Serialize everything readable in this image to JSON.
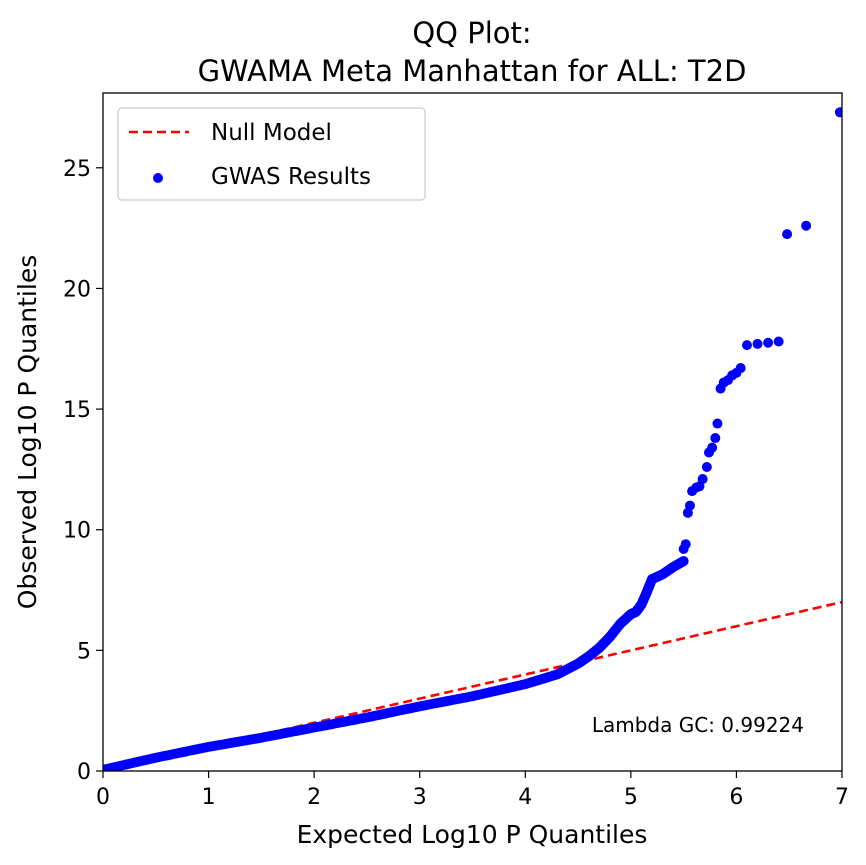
{
  "chart_data": {
    "type": "scatter",
    "title_lines": [
      "QQ Plot:",
      "GWAMA Meta Manhattan for ALL: T2D"
    ],
    "xlabel": "Expected Log10 P Quantiles",
    "ylabel": "Observed Log10 P Quantiles",
    "xlim": [
      0,
      7
    ],
    "ylim": [
      0,
      28.1
    ],
    "xticks": [
      0,
      1,
      2,
      3,
      4,
      5,
      6,
      7
    ],
    "yticks": [
      0,
      5,
      10,
      15,
      20,
      25
    ],
    "grid": false,
    "legend": {
      "placement": "top-left",
      "entries": [
        {
          "label": "Null Model",
          "kind": "dashed-line",
          "color": "#ff0000"
        },
        {
          "label": "GWAS Results",
          "kind": "marker",
          "color": "#0000ff"
        }
      ]
    },
    "annotation": "Lambda GC: 0.99224",
    "series": [
      {
        "name": "Null Model",
        "kind": "line",
        "color": "#ff0000",
        "points": [
          [
            0,
            0
          ],
          [
            7,
            7
          ]
        ]
      },
      {
        "name": "GWAS Results",
        "kind": "scatter",
        "color": "#0000ff",
        "curve": [
          [
            0,
            0.05
          ],
          [
            0.5,
            0.55
          ],
          [
            1,
            1.0
          ],
          [
            1.5,
            1.38
          ],
          [
            2,
            1.8
          ],
          [
            2.5,
            2.22
          ],
          [
            3,
            2.68
          ],
          [
            3.5,
            3.1
          ],
          [
            4,
            3.6
          ],
          [
            4.3,
            4.0
          ],
          [
            4.5,
            4.45
          ],
          [
            4.6,
            4.75
          ],
          [
            4.7,
            5.1
          ],
          [
            4.8,
            5.55
          ],
          [
            4.9,
            6.1
          ],
          [
            5.0,
            6.5
          ],
          [
            5.05,
            6.6
          ],
          [
            5.1,
            6.9
          ],
          [
            5.15,
            7.4
          ],
          [
            5.2,
            7.95
          ],
          [
            5.3,
            8.15
          ],
          [
            5.4,
            8.45
          ],
          [
            5.5,
            8.7
          ]
        ],
        "discrete": [
          [
            5.5,
            9.2
          ],
          [
            5.52,
            9.4
          ],
          [
            5.54,
            10.7
          ],
          [
            5.56,
            11.0
          ],
          [
            5.58,
            11.6
          ],
          [
            5.62,
            11.75
          ],
          [
            5.65,
            11.8
          ],
          [
            5.68,
            12.1
          ],
          [
            5.72,
            12.6
          ],
          [
            5.74,
            13.2
          ],
          [
            5.77,
            13.4
          ],
          [
            5.8,
            13.8
          ],
          [
            5.82,
            14.4
          ],
          [
            5.85,
            15.85
          ],
          [
            5.88,
            16.1
          ],
          [
            5.92,
            16.2
          ],
          [
            5.96,
            16.4
          ],
          [
            6.0,
            16.5
          ],
          [
            6.04,
            16.7
          ],
          [
            6.1,
            17.65
          ],
          [
            6.2,
            17.7
          ],
          [
            6.3,
            17.75
          ],
          [
            6.4,
            17.8
          ],
          [
            6.48,
            22.25
          ],
          [
            6.66,
            22.6
          ],
          [
            6.98,
            27.3
          ]
        ]
      }
    ]
  }
}
